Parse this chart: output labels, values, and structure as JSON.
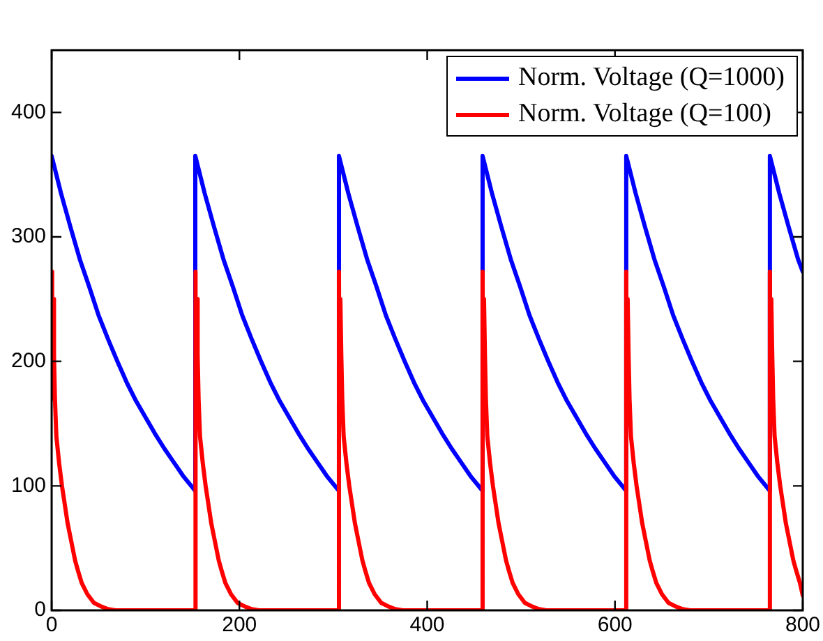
{
  "chart_data": {
    "type": "line",
    "xlim": [
      0,
      800
    ],
    "xticks": [
      0,
      200,
      400,
      600,
      800
    ],
    "ylim": [
      0,
      450
    ],
    "yticks": [
      0,
      100,
      200,
      300,
      400
    ],
    "grid": false,
    "legend": "top right",
    "marker": "none",
    "line_style": "solid",
    "series": [
      {
        "name": "Norm. Voltage (Q=1000)",
        "color": "#0000ff",
        "x": [
          0,
          10,
          20,
          30,
          40,
          50,
          60,
          70,
          80,
          90,
          100,
          110,
          120,
          130,
          140,
          153,
          153,
          163,
          173,
          183,
          193,
          203,
          213,
          223,
          233,
          243,
          253,
          263,
          273,
          283,
          293,
          306,
          306,
          316,
          326,
          336,
          346,
          356,
          366,
          376,
          386,
          396,
          406,
          416,
          426,
          436,
          446,
          459,
          459,
          469,
          479,
          489,
          499,
          509,
          519,
          529,
          539,
          549,
          559,
          569,
          579,
          589,
          599,
          612,
          612,
          622,
          632,
          642,
          652,
          662,
          672,
          682,
          692,
          702,
          712,
          722,
          732,
          742,
          752,
          765,
          765,
          775,
          785,
          795,
          800
        ],
        "values": [
          365,
          335,
          308,
          282,
          260,
          237,
          218,
          200,
          183,
          168,
          155,
          142,
          130,
          119,
          108,
          96,
          365,
          335,
          308,
          282,
          260,
          237,
          218,
          200,
          183,
          168,
          155,
          142,
          130,
          119,
          108,
          96,
          365,
          335,
          308,
          282,
          260,
          237,
          218,
          200,
          183,
          168,
          155,
          142,
          130,
          119,
          108,
          96,
          365,
          335,
          308,
          282,
          260,
          237,
          218,
          200,
          183,
          168,
          155,
          142,
          130,
          119,
          108,
          96,
          365,
          335,
          308,
          282,
          260,
          237,
          218,
          200,
          183,
          168,
          155,
          142,
          130,
          119,
          108,
          96,
          365,
          335,
          308,
          282,
          272
        ]
      },
      {
        "name": "Norm. Voltage (Q=100)",
        "color": "#ff0000",
        "x": [
          0,
          0.5,
          1.5,
          2.5,
          3.5,
          5,
          8,
          11,
          14,
          17,
          21,
          25,
          28,
          32,
          38,
          45,
          53,
          60,
          68,
          153,
          153,
          153.5,
          154.5,
          155.5,
          156.5,
          158,
          161,
          164,
          167,
          170,
          174,
          178,
          181,
          185,
          191,
          198,
          206,
          213,
          221,
          306,
          306,
          306.5,
          307.5,
          308.5,
          309.5,
          311,
          314,
          317,
          320,
          323,
          327,
          331,
          334,
          338,
          344,
          351,
          359,
          366,
          374,
          459,
          459,
          459.5,
          460.5,
          461.5,
          462.5,
          464,
          467,
          470,
          473,
          476,
          480,
          484,
          487,
          491,
          497,
          504,
          512,
          519,
          527,
          612,
          612,
          612.5,
          613.5,
          614.5,
          615.5,
          617,
          620,
          623,
          626,
          629,
          633,
          637,
          640,
          644,
          650,
          657,
          665,
          672,
          680,
          765,
          765,
          765.5,
          766.5,
          767.5,
          768.5,
          770,
          773,
          776,
          779,
          782,
          786,
          790,
          793,
          797,
          800
        ],
        "values": [
          272,
          170,
          250,
          205,
          170,
          140,
          118,
          100,
          85,
          70,
          55,
          40,
          32,
          22,
          13,
          6,
          3,
          1,
          0,
          0,
          272,
          170,
          250,
          205,
          170,
          140,
          118,
          100,
          85,
          70,
          55,
          40,
          32,
          22,
          13,
          6,
          3,
          1,
          0,
          0,
          272,
          170,
          250,
          205,
          170,
          140,
          118,
          100,
          85,
          70,
          55,
          40,
          32,
          22,
          13,
          6,
          3,
          1,
          0,
          0,
          272,
          170,
          250,
          205,
          170,
          140,
          118,
          100,
          85,
          70,
          55,
          40,
          32,
          22,
          13,
          6,
          3,
          1,
          0,
          0,
          272,
          170,
          250,
          205,
          170,
          140,
          118,
          100,
          85,
          70,
          55,
          40,
          32,
          22,
          13,
          6,
          3,
          1,
          0,
          0,
          272,
          170,
          250,
          205,
          170,
          140,
          118,
          100,
          85,
          70,
          55,
          40,
          32,
          22,
          12
        ]
      }
    ]
  }
}
